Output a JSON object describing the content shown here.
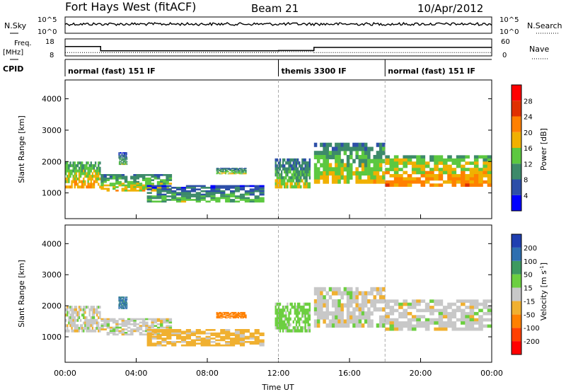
{
  "header": {
    "title": "Fort Hays West (fitACF)",
    "beam": "Beam 21",
    "date": "10/Apr/2012"
  },
  "noise_panel": {
    "left_label": "N.Sky",
    "left_ticks": [
      "10^5",
      "10^0"
    ],
    "right_label": "N.Search",
    "right_ticks": [
      "10^5",
      "10^0"
    ]
  },
  "freq_panel": {
    "left_label_1": "Freq.",
    "left_label_2": "[MHz]",
    "left_ticks": [
      "18",
      "8"
    ],
    "right_label": "Nave",
    "right_ticks": [
      "60",
      "0"
    ],
    "freq_mhz": [
      {
        "start_h": 0,
        "end_h": 2,
        "value": 13.5
      },
      {
        "start_h": 2,
        "end_h": 12,
        "value": 11
      },
      {
        "start_h": 12,
        "end_h": 14,
        "value": 11.2
      },
      {
        "start_h": 14,
        "end_h": 24,
        "value": 13
      }
    ],
    "nave": [
      {
        "start_h": 0,
        "end_h": 12,
        "value": 12
      },
      {
        "start_h": 12,
        "end_h": 14,
        "value": 15
      },
      {
        "start_h": 14,
        "end_h": 24,
        "value": 12
      }
    ]
  },
  "cpid": {
    "label": "CPID",
    "segments": [
      {
        "start_h": 0,
        "end_h": 12,
        "name": "normal (fast) 151 IF"
      },
      {
        "start_h": 12,
        "end_h": 18,
        "name": "themis 3300 IF"
      },
      {
        "start_h": 18,
        "end_h": 24,
        "name": "normal (fast) 151 IF"
      }
    ]
  },
  "power_panel": {
    "ylabel": "Slant Range [km]",
    "yticks": [
      "1000",
      "2000",
      "3000",
      "4000"
    ],
    "colorbar_label": "Power [dB]",
    "colorbar_ticks": [
      "4",
      "8",
      "12",
      "16",
      "20",
      "24",
      "28"
    ],
    "colors": [
      "#0000ff",
      "#2d4fa8",
      "#3d8a6a",
      "#5cc840",
      "#f0b000",
      "#ff8000",
      "#e03000",
      "#ff0000"
    ]
  },
  "velocity_panel": {
    "ylabel": "Slant Range [km]",
    "yticks": [
      "1000",
      "2000",
      "3000",
      "4000"
    ],
    "colorbar_label": "Velocity [m s",
    "colorbar_label_sup": "-1",
    "colorbar_label_end": "]",
    "colorbar_ticks": [
      "200",
      "100",
      "50",
      "15",
      "-15",
      "-50",
      "-100",
      "-200"
    ],
    "colors": [
      "#1f3fb0",
      "#2e6fb0",
      "#3d9a60",
      "#6ccf40",
      "#c8c8c8",
      "#f0b030",
      "#ff8000",
      "#ff4000",
      "#ff0000"
    ]
  },
  "xaxis": {
    "label": "Time UT",
    "ticks": [
      "00:00",
      "04:00",
      "08:00",
      "12:00",
      "16:00",
      "20:00",
      "00:00"
    ]
  },
  "chart_data": {
    "type": "heatmap",
    "title": "Fort Hays West (fitACF)",
    "xlabel": "Time UT",
    "ylabel": "Slant Range [km]",
    "xlim_hours": [
      0,
      24
    ],
    "ylim_km": [
      180,
      4600
    ],
    "grid": false,
    "series": [
      {
        "name": "Power [dB]",
        "range": [
          0,
          32
        ]
      },
      {
        "name": "Velocity [m s-1]",
        "range": [
          -250,
          250
        ]
      }
    ],
    "echo_bands": [
      {
        "start_h": 0,
        "end_h": 2,
        "range_low_km": 1150,
        "range_high_km": 2000,
        "power_db": 16,
        "velocity": 0
      },
      {
        "start_h": 2,
        "end_h": 6,
        "range_low_km": 1050,
        "range_high_km": 1600,
        "power_db": 14,
        "velocity": 0
      },
      {
        "start_h": 3,
        "end_h": 3.5,
        "range_low_km": 1900,
        "range_high_km": 2300,
        "power_db": 10,
        "velocity": 110
      },
      {
        "start_h": 4.6,
        "end_h": 11.2,
        "range_low_km": 700,
        "range_high_km": 1250,
        "power_db": 10,
        "velocity": -30
      },
      {
        "start_h": 8.5,
        "end_h": 10.2,
        "range_low_km": 1600,
        "range_high_km": 1800,
        "power_db": 12,
        "velocity": -70
      },
      {
        "start_h": 11.8,
        "end_h": 13.8,
        "range_low_km": 1150,
        "range_high_km": 2100,
        "power_db": 12,
        "velocity": 30
      },
      {
        "start_h": 14,
        "end_h": 18,
        "range_low_km": 1300,
        "range_high_km": 2600,
        "power_db": 14,
        "velocity": 0
      },
      {
        "start_h": 18,
        "end_h": 24,
        "range_low_km": 1200,
        "range_high_km": 2200,
        "power_db": 18,
        "velocity": 0
      }
    ]
  }
}
